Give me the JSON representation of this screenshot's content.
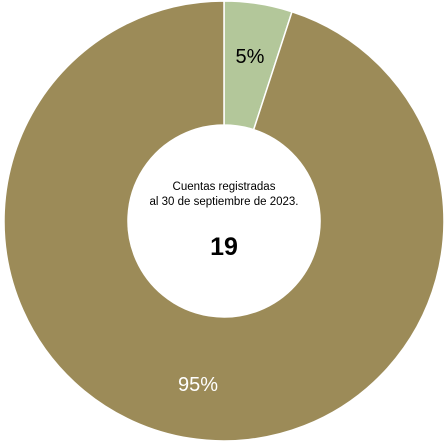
{
  "chart_data": {
    "type": "pie",
    "donut": true,
    "start_angle_deg": 0,
    "direction": "clockwise",
    "categories": [
      "",
      ""
    ],
    "values": [
      5,
      95
    ],
    "value_labels": [
      "5%",
      "95%"
    ],
    "colors": [
      "#b3c79a",
      "#9c8b58"
    ],
    "label_colors": [
      "#000000",
      "#ffffff"
    ],
    "center_text": {
      "line1": "Cuentas registradas",
      "line2": "al 30 de septiembre de 2023.",
      "value": "19"
    }
  }
}
